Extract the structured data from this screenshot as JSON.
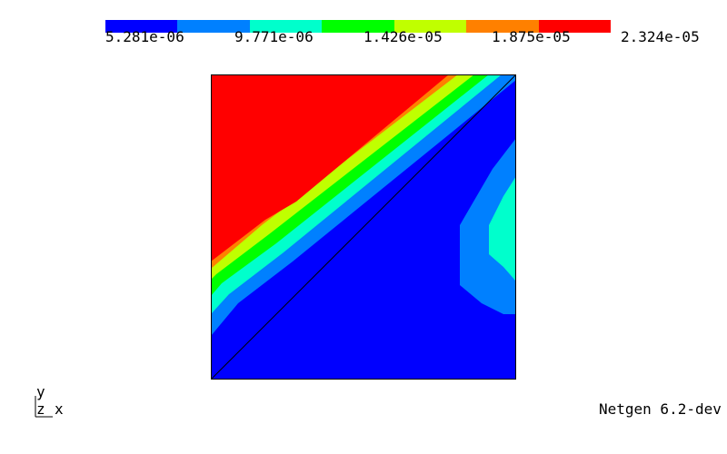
{
  "colorbar": {
    "colors": [
      "#0000ff",
      "#0080ff",
      "#00ffcc",
      "#00ff00",
      "#c0ff00",
      "#ff8000",
      "#ff0000"
    ],
    "labels": [
      "5.281e-06",
      "9.771e-06",
      "1.426e-05",
      "1.875e-05",
      "2.324e-05"
    ]
  },
  "axes_triad": {
    "y": "y",
    "z": "z",
    "x": "x"
  },
  "footer": {
    "version_text": "Netgen 6.2-dev"
  },
  "plot": {
    "field_colors": {
      "red": "#ff0000",
      "orange": "#ff8000",
      "yellow": "#c0ff00",
      "green": "#00ff00",
      "cyan": "#00ffcc",
      "lightblue": "#0080ff",
      "blue": "#0000ff"
    },
    "edge_color": "#000000"
  }
}
